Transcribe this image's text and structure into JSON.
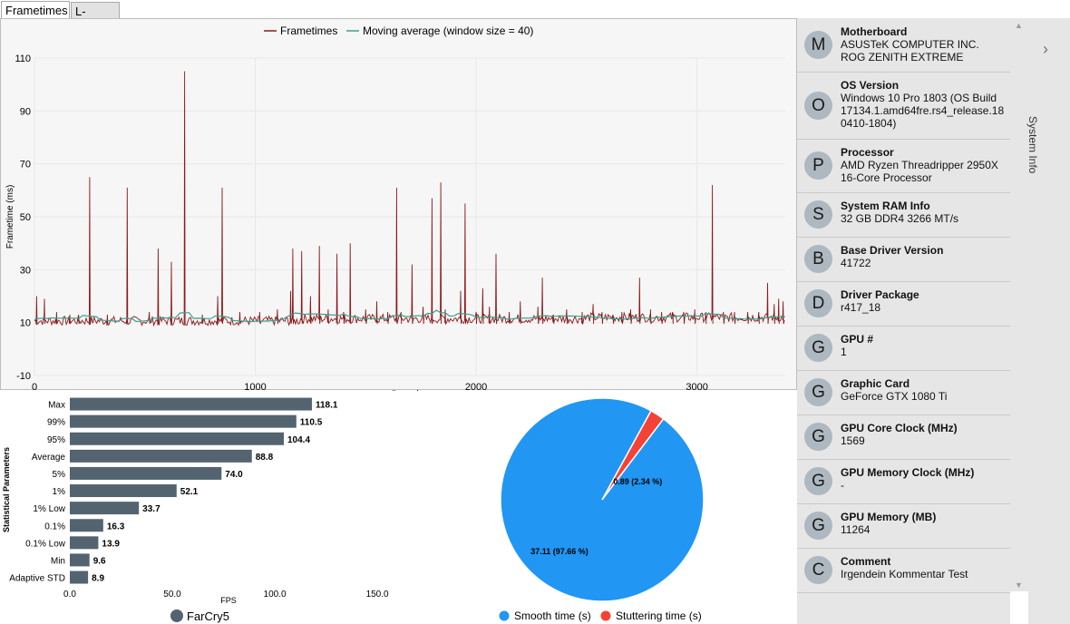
{
  "tabs": [
    {
      "label": "Frametimes",
      "active": true
    },
    {
      "label": "L-shape",
      "active": false
    }
  ],
  "legend": {
    "frametimes": "Frametimes",
    "moving_average": "Moving average (window size = 40)"
  },
  "colors": {
    "frametimes": "#8b1a1a",
    "moving_average": "#3d9e90",
    "bar": "#536470",
    "smooth": "#2196f3",
    "stutter": "#f44336"
  },
  "chart_data": [
    {
      "type": "line",
      "title": "",
      "xlabel": "Samples",
      "ylabel": "Frametime (ms)",
      "xlim": [
        0,
        3400
      ],
      "ylim": [
        -10,
        110
      ],
      "xticks": [
        "0",
        "1000",
        "2000",
        "3000"
      ],
      "yticks": [
        "-10",
        "10",
        "30",
        "50",
        "70",
        "90",
        "110"
      ],
      "series": [
        {
          "name": "Frametimes",
          "baseline": 10.5,
          "spikes": [
            [
              10,
              20
            ],
            [
              45,
              19
            ],
            [
              100,
              14
            ],
            [
              160,
              13
            ],
            [
              200,
              13
            ],
            [
              250,
              65
            ],
            [
              330,
              13
            ],
            [
              420,
              61
            ],
            [
              520,
              14
            ],
            [
              560,
              14
            ],
            [
              560,
              38
            ],
            [
              620,
              33
            ],
            [
              680,
              105
            ],
            [
              760,
              13
            ],
            [
              830,
              20
            ],
            [
              850,
              61
            ],
            [
              930,
              14
            ],
            [
              1020,
              14
            ],
            [
              1100,
              15
            ],
            [
              1160,
              22
            ],
            [
              1170,
              38
            ],
            [
              1210,
              37
            ],
            [
              1250,
              20
            ],
            [
              1290,
              39
            ],
            [
              1330,
              15
            ],
            [
              1370,
              36
            ],
            [
              1400,
              14
            ],
            [
              1430,
              40
            ],
            [
              1500,
              15
            ],
            [
              1550,
              18
            ],
            [
              1600,
              14
            ],
            [
              1640,
              61
            ],
            [
              1660,
              14
            ],
            [
              1710,
              32
            ],
            [
              1760,
              16
            ],
            [
              1800,
              57
            ],
            [
              1840,
              63
            ],
            [
              1860,
              15
            ],
            [
              1930,
              22
            ],
            [
              1950,
              55
            ],
            [
              2000,
              14
            ],
            [
              2030,
              23
            ],
            [
              2060,
              16
            ],
            [
              2090,
              36
            ],
            [
              2150,
              14
            ],
            [
              2200,
              18
            ],
            [
              2280,
              16
            ],
            [
              2300,
              27
            ],
            [
              2350,
              13
            ],
            [
              2410,
              15
            ],
            [
              2480,
              14
            ],
            [
              2530,
              17
            ],
            [
              2570,
              14
            ],
            [
              2620,
              13
            ],
            [
              2660,
              14
            ],
            [
              2700,
              15
            ],
            [
              2740,
              27
            ],
            [
              2790,
              15
            ],
            [
              2840,
              14
            ],
            [
              2890,
              14
            ],
            [
              2940,
              14
            ],
            [
              2990,
              15
            ],
            [
              3040,
              14
            ],
            [
              3070,
              62
            ],
            [
              3120,
              14
            ],
            [
              3170,
              14
            ],
            [
              3230,
              14
            ],
            [
              3280,
              14
            ],
            [
              3320,
              25
            ],
            [
              3350,
              17
            ],
            [
              3370,
              19
            ],
            [
              3390,
              18
            ]
          ]
        },
        {
          "name": "Moving average (window size = 40)",
          "baseline": 11
        }
      ]
    },
    {
      "type": "bar",
      "orientation": "horizontal",
      "xlabel": "FPS",
      "ylabel": "Statistical Parameters",
      "xlim": [
        0,
        165
      ],
      "xticks": [
        "0.0",
        "50.0",
        "100.0",
        "150.0"
      ],
      "categories": [
        "Max",
        "99%",
        "95%",
        "Average",
        "5%",
        "1%",
        "1% Low",
        "0.1%",
        "0.1% Low",
        "Min",
        "Adaptive STD"
      ],
      "values": [
        118.1,
        110.5,
        104.4,
        88.8,
        74.0,
        52.1,
        33.7,
        16.3,
        13.9,
        9.6,
        8.9
      ],
      "value_labels": [
        "118.1",
        "110.5",
        "104.4",
        "88.8",
        "74.0",
        "52.1",
        "33.7",
        "16.3",
        "13.9",
        "9.6",
        "8.9"
      ],
      "legend": [
        "FarCry5"
      ]
    },
    {
      "type": "pie",
      "slices": [
        {
          "name": "Smooth time (s)",
          "value": 37.11,
          "label": "37.11 (97.66 %)"
        },
        {
          "name": "Stuttering time (s)",
          "value": 0.89,
          "label": "0.89 (2.34 %)"
        }
      ],
      "legend": [
        "Smooth time (s)",
        "Stuttering time (s)"
      ]
    }
  ],
  "system_info": {
    "title": "System Info",
    "items": [
      {
        "letter": "M",
        "name": "Motherboard",
        "value": "ASUSTeK COMPUTER INC. ROG ZENITH EXTREME"
      },
      {
        "letter": "O",
        "name": "OS Version",
        "value": "Windows 10 Pro 1803 (OS Build 17134.1.amd64fre.rs4_release.18 0410-1804)"
      },
      {
        "letter": "P",
        "name": "Processor",
        "value": "AMD Ryzen Threadripper 2950X 16-Core Processor"
      },
      {
        "letter": "S",
        "name": "System RAM Info",
        "value": "32 GB DDR4 3266 MT/s"
      },
      {
        "letter": "B",
        "name": "Base Driver Version",
        "value": "41722"
      },
      {
        "letter": "D",
        "name": "Driver Package",
        "value": "r417_18"
      },
      {
        "letter": "G",
        "name": "GPU #",
        "value": "1"
      },
      {
        "letter": "G",
        "name": "Graphic Card",
        "value": "GeForce GTX 1080 Ti"
      },
      {
        "letter": "G",
        "name": "GPU Core Clock (MHz)",
        "value": "1569"
      },
      {
        "letter": "G",
        "name": "GPU Memory Clock (MHz)",
        "value": "-"
      },
      {
        "letter": "G",
        "name": "GPU Memory (MB)",
        "value": "11264"
      },
      {
        "letter": "C",
        "name": "Comment",
        "value": "Irgendein Kommentar Test"
      }
    ]
  },
  "icons": {
    "scroll_up": "triangle-up-icon",
    "scroll_down": "triangle-down-icon",
    "expand": "chevron-right-icon"
  }
}
